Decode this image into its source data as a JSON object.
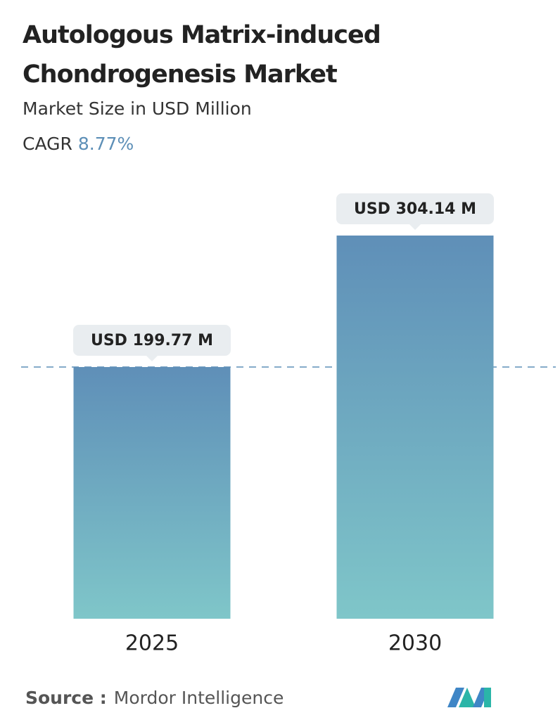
{
  "chart_data": {
    "type": "bar",
    "title": "Autologous Matrix-induced Chondrogenesis Market",
    "subtitle": "Market Size in USD Million",
    "cagr_label": "CAGR",
    "cagr": "8.77%",
    "categories": [
      "2025",
      "2030"
    ],
    "values": [
      199.77,
      304.14
    ],
    "value_labels": [
      "USD 199.77 M",
      "USD 304.14 M"
    ],
    "source_label": "Source :",
    "source": "Mordor Intelligence"
  }
}
